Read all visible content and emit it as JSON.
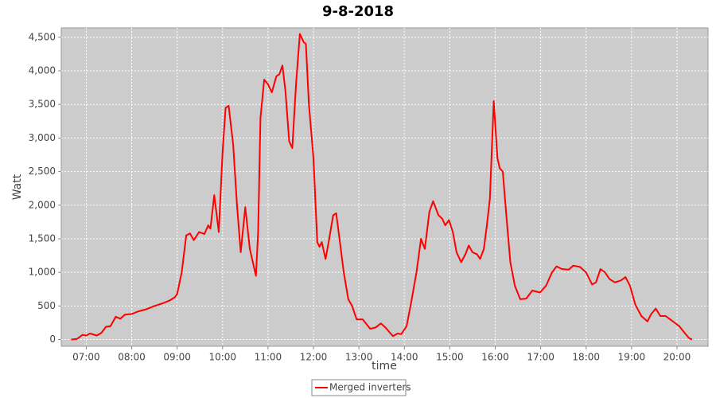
{
  "chart_data": {
    "type": "line",
    "title": "9-8-2018",
    "x_label": "time",
    "y_label": "Watt",
    "x": [
      "06:40",
      "06:48",
      "06:55",
      "07:00",
      "07:05",
      "07:14",
      "07:20",
      "07:26",
      "07:32",
      "07:39",
      "07:45",
      "07:51",
      "08:00",
      "08:09",
      "08:19",
      "08:30",
      "08:41",
      "08:50",
      "08:57",
      "09:00",
      "09:06",
      "09:12",
      "09:17",
      "09:22",
      "09:29",
      "09:36",
      "09:41",
      "09:44",
      "09:49",
      "09:55",
      "10:00",
      "10:04",
      "10:08",
      "10:14",
      "10:19",
      "10:24",
      "10:30",
      "10:36",
      "10:41",
      "10:44",
      "10:47",
      "10:50",
      "10:55",
      "11:00",
      "11:05",
      "11:11",
      "11:15",
      "11:19",
      "11:23",
      "11:28",
      "11:32",
      "11:37",
      "11:42",
      "11:47",
      "11:50",
      "11:54",
      "12:00",
      "12:05",
      "12:08",
      "12:11",
      "12:16",
      "12:20",
      "12:26",
      "12:30",
      "12:35",
      "12:40",
      "12:46",
      "12:51",
      "12:57",
      "13:05",
      "13:10",
      "13:15",
      "13:22",
      "13:29",
      "13:35",
      "13:41",
      "13:45",
      "13:51",
      "13:56",
      "14:03",
      "14:09",
      "14:16",
      "14:22",
      "14:27",
      "14:33",
      "14:38",
      "14:45",
      "14:50",
      "14:54",
      "14:59",
      "15:04",
      "15:09",
      "15:15",
      "15:21",
      "15:25",
      "15:30",
      "15:36",
      "15:40",
      "15:45",
      "15:49",
      "15:53",
      "15:58",
      "16:03",
      "16:06",
      "16:10",
      "16:15",
      "16:20",
      "16:26",
      "16:33",
      "16:41",
      "16:49",
      "16:59",
      "17:07",
      "17:15",
      "17:21",
      "17:28",
      "17:37",
      "17:43",
      "17:52",
      "18:00",
      "18:08",
      "18:13",
      "18:19",
      "18:25",
      "18:31",
      "18:38",
      "18:46",
      "18:52",
      "18:58",
      "19:05",
      "19:13",
      "19:21",
      "19:26",
      "19:32",
      "19:38",
      "19:45",
      "19:51",
      "19:57",
      "20:03",
      "20:10",
      "20:16",
      "20:20"
    ],
    "series": [
      {
        "name": "Merged inverters",
        "color": "#ff0000",
        "values": [
          0,
          10,
          70,
          60,
          90,
          60,
          100,
          190,
          200,
          340,
          310,
          370,
          380,
          420,
          450,
          500,
          540,
          580,
          630,
          680,
          1000,
          1550,
          1580,
          1480,
          1600,
          1570,
          1700,
          1650,
          2150,
          1600,
          2800,
          3450,
          3480,
          2900,
          2000,
          1300,
          1970,
          1350,
          1100,
          950,
          1600,
          3300,
          3870,
          3800,
          3680,
          3920,
          3950,
          4080,
          3700,
          2950,
          2850,
          3800,
          4550,
          4430,
          4400,
          3500,
          2700,
          1450,
          1380,
          1450,
          1200,
          1450,
          1850,
          1880,
          1450,
          1000,
          600,
          500,
          300,
          300,
          230,
          160,
          180,
          240,
          180,
          100,
          50,
          90,
          80,
          200,
          550,
          1000,
          1500,
          1350,
          1900,
          2060,
          1850,
          1800,
          1700,
          1780,
          1600,
          1300,
          1150,
          1280,
          1400,
          1300,
          1270,
          1200,
          1350,
          1700,
          2100,
          3550,
          2700,
          2550,
          2500,
          1800,
          1150,
          800,
          600,
          610,
          730,
          700,
          800,
          1000,
          1090,
          1050,
          1040,
          1100,
          1080,
          1000,
          820,
          850,
          1050,
          1000,
          900,
          850,
          880,
          930,
          800,
          520,
          350,
          270,
          380,
          460,
          350,
          350,
          300,
          250,
          200,
          100,
          20,
          0
        ]
      }
    ],
    "xlim": [
      "06:27",
      "20:41"
    ],
    "xticks": [
      "07:00",
      "08:00",
      "09:00",
      "10:00",
      "11:00",
      "12:00",
      "13:00",
      "14:00",
      "15:00",
      "16:00",
      "17:00",
      "18:00",
      "19:00",
      "20:00"
    ],
    "ylim": [
      -100,
      4640
    ],
    "yticks": [
      0,
      500,
      {
        "value": 1000,
        "label": "1,000"
      },
      {
        "value": 1500,
        "label": "1,500"
      },
      {
        "value": 2000,
        "label": "2,000"
      },
      {
        "value": 2500,
        "label": "2,500"
      },
      {
        "value": 3000,
        "label": "3,000"
      },
      {
        "value": 3500,
        "label": "3,500"
      },
      {
        "value": 4000,
        "label": "4,000"
      },
      {
        "value": 4500,
        "label": "4,500"
      }
    ],
    "grid": true,
    "legend": "bottom"
  }
}
